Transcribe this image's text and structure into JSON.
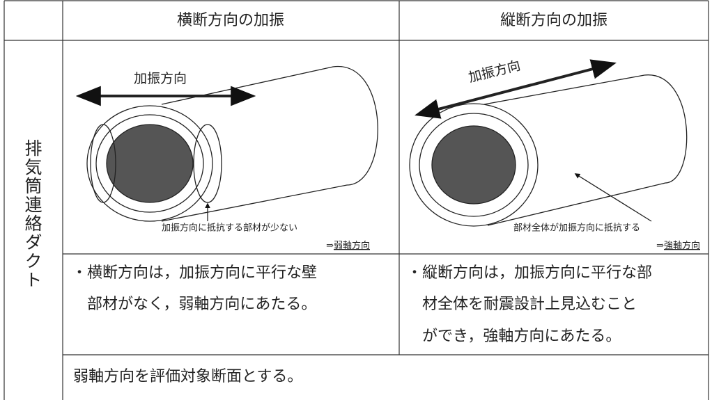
{
  "table": {
    "header": [
      "横断方向の加振",
      "縦断方向の加振"
    ],
    "row_label": "排気筒連絡ダクト",
    "figures": [
      {
        "direction": "加振方向",
        "note": "加振方向に抵抗する部材が少ない",
        "arrow": "⇒",
        "axis": "弱軸方向"
      },
      {
        "direction": "加振方向",
        "note": "部材全体が加振方向に抵抗する",
        "arrow": "⇒",
        "axis": "強軸方向"
      }
    ],
    "descriptions": [
      [
        "・横断方向は，加振方向に平行な壁",
        "部材がなく，弱軸方向にあたる。"
      ],
      [
        "・縦断方向は，加振方向に平行な部",
        "材全体を耐震設計上見込むこと",
        "ができ，強軸方向にあたる。"
      ]
    ],
    "conclusion": "弱軸方向を評価対象断面とする。"
  }
}
